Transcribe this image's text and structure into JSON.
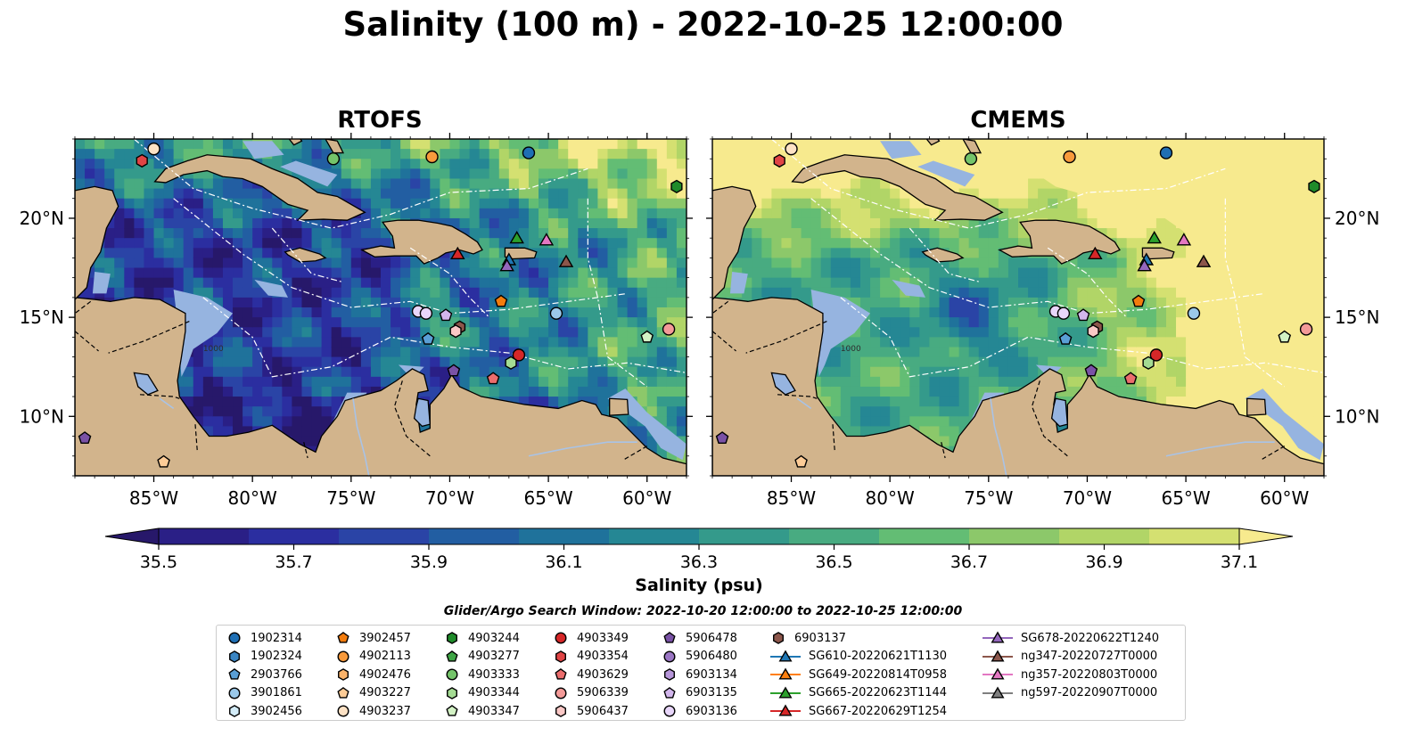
{
  "title": "Salinity (100 m) - 2022-10-25 12:00:00",
  "panels": [
    {
      "title": "RTOFS"
    },
    {
      "title": "CMEMS"
    }
  ],
  "map_axes": {
    "lon_ticks": [
      "85°W",
      "80°W",
      "75°W",
      "70°W",
      "65°W",
      "60°W"
    ],
    "lat_ticks": [
      "20°N",
      "15°N",
      "10°N"
    ]
  },
  "contour_label": "1000",
  "colorbar": {
    "label": "Salinity (psu)",
    "ticks": [
      "35.5",
      "35.7",
      "35.9",
      "36.1",
      "36.3",
      "36.5",
      "36.7",
      "36.9",
      "37.1"
    ],
    "colors": [
      "#27186a",
      "#2a1f86",
      "#2b2ea0",
      "#2a44a6",
      "#225ea2",
      "#1f729b",
      "#258794",
      "#349a8b",
      "#48ab81",
      "#63bd74",
      "#8cc86a",
      "#b1d567",
      "#d4e071",
      "#f7ea8e"
    ]
  },
  "legend": {
    "title": "Glider/Argo Search Window: 2022-10-20 12:00:00 to 2022-10-25 12:00:00",
    "entries": [
      {
        "label": "1902314",
        "marker": "circle",
        "color": "#1f6fb4"
      },
      {
        "label": "1902324",
        "marker": "hexagon",
        "color": "#3a85c3"
      },
      {
        "label": "2903766",
        "marker": "pentagon",
        "color": "#5a9fd6"
      },
      {
        "label": "3901861",
        "marker": "circle",
        "color": "#9bc9ea"
      },
      {
        "label": "3902456",
        "marker": "hexagon",
        "color": "#d3ecf8"
      },
      {
        "label": "3902457",
        "marker": "pentagon",
        "color": "#f37c0d"
      },
      {
        "label": "4902113",
        "marker": "circle",
        "color": "#f89a3c"
      },
      {
        "label": "4902476",
        "marker": "hexagon",
        "color": "#fbb36a"
      },
      {
        "label": "4903227",
        "marker": "pentagon",
        "color": "#fdcc97"
      },
      {
        "label": "4903237",
        "marker": "circle",
        "color": "#fde2c5"
      },
      {
        "label": "4903244",
        "marker": "hexagon",
        "color": "#1f8b2a"
      },
      {
        "label": "4903277",
        "marker": "pentagon",
        "color": "#3ea545"
      },
      {
        "label": "4903333",
        "marker": "circle",
        "color": "#74c46a"
      },
      {
        "label": "4903344",
        "marker": "hexagon",
        "color": "#a4db93"
      },
      {
        "label": "4903347",
        "marker": "pentagon",
        "color": "#d3f2c5"
      },
      {
        "label": "4903349",
        "marker": "circle",
        "color": "#d62728"
      },
      {
        "label": "4903354",
        "marker": "hexagon",
        "color": "#e04445"
      },
      {
        "label": "4903629",
        "marker": "pentagon",
        "color": "#eb6d6d"
      },
      {
        "label": "5906339",
        "marker": "circle",
        "color": "#f39a98"
      },
      {
        "label": "5906437",
        "marker": "hexagon",
        "color": "#fac8c6"
      },
      {
        "label": "5906478",
        "marker": "pentagon",
        "color": "#7a52a6"
      },
      {
        "label": "5906480",
        "marker": "circle",
        "color": "#9b76c4"
      },
      {
        "label": "6903134",
        "marker": "hexagon",
        "color": "#b796da"
      },
      {
        "label": "6903135",
        "marker": "pentagon",
        "color": "#d2b6ec"
      },
      {
        "label": "6903136",
        "marker": "circle",
        "color": "#e8d6fa"
      },
      {
        "label": "6903137",
        "marker": "hexagon",
        "color": "#8c564b"
      },
      {
        "label": "SG610-20220621T1130",
        "marker": "triangle-line",
        "color": "#1f77b4"
      },
      {
        "label": "SG649-20220814T0958",
        "marker": "triangle-line",
        "color": "#ff7f0e"
      },
      {
        "label": "SG665-20220623T1144",
        "marker": "triangle-line",
        "color": "#2ca02c"
      },
      {
        "label": "SG667-20220629T1254",
        "marker": "triangle-line",
        "color": "#d62728"
      },
      {
        "label": "SG678-20220622T1240",
        "marker": "triangle-line",
        "color": "#9467bd"
      },
      {
        "label": "ng347-20220727T0000",
        "marker": "triangle-line",
        "color": "#8c564b"
      },
      {
        "label": "ng357-20220803T0000",
        "marker": "triangle-line",
        "color": "#e377c2"
      },
      {
        "label": "ng597-20220907T0000",
        "marker": "triangle-line",
        "color": "#7f7f7f"
      }
    ]
  },
  "chart_data": {
    "type": "map",
    "variable": "Salinity (psu)",
    "depth": "100 m",
    "time": "2022-10-25 12:00:00",
    "lon_range": [
      -89,
      -58
    ],
    "lat_range": [
      7,
      24
    ],
    "color_range": [
      35.5,
      37.1
    ],
    "models": [
      "RTOFS",
      "CMEMS"
    ],
    "observations": [
      {
        "id": "1902314",
        "lon": -66.0,
        "lat": 23.3
      },
      {
        "id": "4903237",
        "lon": -85.0,
        "lat": 23.5
      },
      {
        "id": "4903354",
        "lon": -85.6,
        "lat": 22.9
      },
      {
        "id": "4903333",
        "lon": -75.9,
        "lat": 23.0
      },
      {
        "id": "4902113",
        "lon": -70.9,
        "lat": 23.1
      },
      {
        "id": "4903244",
        "lon": -58.5,
        "lat": 21.6
      },
      {
        "id": "3902457",
        "lon": -67.4,
        "lat": 15.8
      },
      {
        "id": "3901861",
        "lon": -64.6,
        "lat": 15.2
      },
      {
        "id": "6903136",
        "lon": -71.6,
        "lat": 15.3
      },
      {
        "id": "6903136",
        "lon": -71.2,
        "lat": 15.2
      },
      {
        "id": "6903135",
        "lon": -70.2,
        "lat": 15.1
      },
      {
        "id": "6903137",
        "lon": -69.5,
        "lat": 14.5
      },
      {
        "id": "5906437",
        "lon": -69.7,
        "lat": 14.3
      },
      {
        "id": "2903766",
        "lon": -71.1,
        "lat": 13.9
      },
      {
        "id": "4903347",
        "lon": -60.0,
        "lat": 14.0
      },
      {
        "id": "5906339",
        "lon": -58.9,
        "lat": 14.4
      },
      {
        "id": "4903349",
        "lon": -66.5,
        "lat": 13.1
      },
      {
        "id": "4903344",
        "lon": -66.9,
        "lat": 12.7
      },
      {
        "id": "5906478",
        "lon": -69.8,
        "lat": 12.3
      },
      {
        "id": "4903629",
        "lon": -67.8,
        "lat": 11.9
      },
      {
        "id": "5906478",
        "lon": -88.5,
        "lat": 8.9
      },
      {
        "id": "4903227",
        "lon": -84.5,
        "lat": 7.7
      },
      {
        "id": "SG665-20220623T1144",
        "lon": -66.6,
        "lat": 19.0
      },
      {
        "id": "ng357-20220803T0000",
        "lon": -65.1,
        "lat": 18.9
      },
      {
        "id": "SG667-20220629T1254",
        "lon": -69.6,
        "lat": 18.2
      },
      {
        "id": "SG610-20220621T1130",
        "lon": -67.0,
        "lat": 17.9
      },
      {
        "id": "SG678-20220622T1240",
        "lon": -67.1,
        "lat": 17.6
      },
      {
        "id": "ng347-20220727T0000",
        "lon": -64.1,
        "lat": 17.8
      }
    ]
  }
}
